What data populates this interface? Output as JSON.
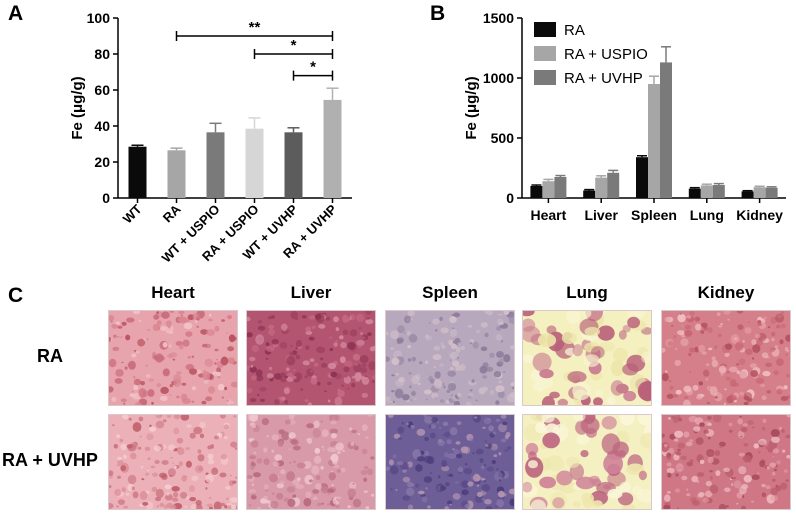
{
  "panels": {
    "a": "A",
    "b": "B",
    "c": "C"
  },
  "chart_data": [
    {
      "type": "bar",
      "panel": "A",
      "ylabel": "Fe (μg/g)",
      "ylim": [
        0,
        100
      ],
      "yticks": [
        "0",
        "20",
        "40",
        "60",
        "80",
        "100"
      ],
      "categories": [
        "WT",
        "RA",
        "WT + USPIO",
        "RA + USPIO",
        "WT + UVHP",
        "RA + UVHP"
      ],
      "values": [
        28.5,
        26.5,
        36.5,
        38.5,
        36.5,
        54.5
      ],
      "errors": [
        0.8,
        1.2,
        5,
        6,
        2.5,
        6.5
      ],
      "colors": [
        "#0a0a0a",
        "#a6a6a6",
        "#7a7a7a",
        "#d6d6d6",
        "#5c5c5c",
        "#b0b0b0"
      ],
      "significance": [
        {
          "from": 1,
          "to": 5,
          "label": "**",
          "y": 90
        },
        {
          "from": 3,
          "to": 5,
          "label": "*",
          "y": 80
        },
        {
          "from": 4,
          "to": 5,
          "label": "*",
          "y": 68
        }
      ]
    },
    {
      "type": "bar",
      "panel": "B",
      "ylabel": "Fe (μg/g)",
      "ylim": [
        0,
        1500
      ],
      "yticks": [
        "0",
        "500",
        "1000",
        "1500"
      ],
      "categories": [
        "Heart",
        "Liver",
        "Spleen",
        "Lung",
        "Kidney"
      ],
      "series": [
        {
          "name": "RA",
          "color": "#0a0a0a",
          "values": [
            100,
            62,
            340,
            78,
            55
          ],
          "errors": [
            8,
            8,
            12,
            8,
            6
          ]
        },
        {
          "name": "RA + USPIO",
          "color": "#a6a6a6",
          "values": [
            140,
            170,
            950,
            105,
            90
          ],
          "errors": [
            15,
            15,
            65,
            10,
            8
          ]
        },
        {
          "name": "RA + UVHP",
          "color": "#7a7a7a",
          "values": [
            175,
            210,
            1130,
            108,
            85
          ],
          "errors": [
            12,
            20,
            130,
            12,
            8
          ]
        }
      ],
      "legend": "top-left"
    }
  ],
  "histology": {
    "columns": [
      "Heart",
      "Liver",
      "Spleen",
      "Lung",
      "Kidney"
    ],
    "rows": [
      "RA",
      "RA + UVHP"
    ]
  }
}
